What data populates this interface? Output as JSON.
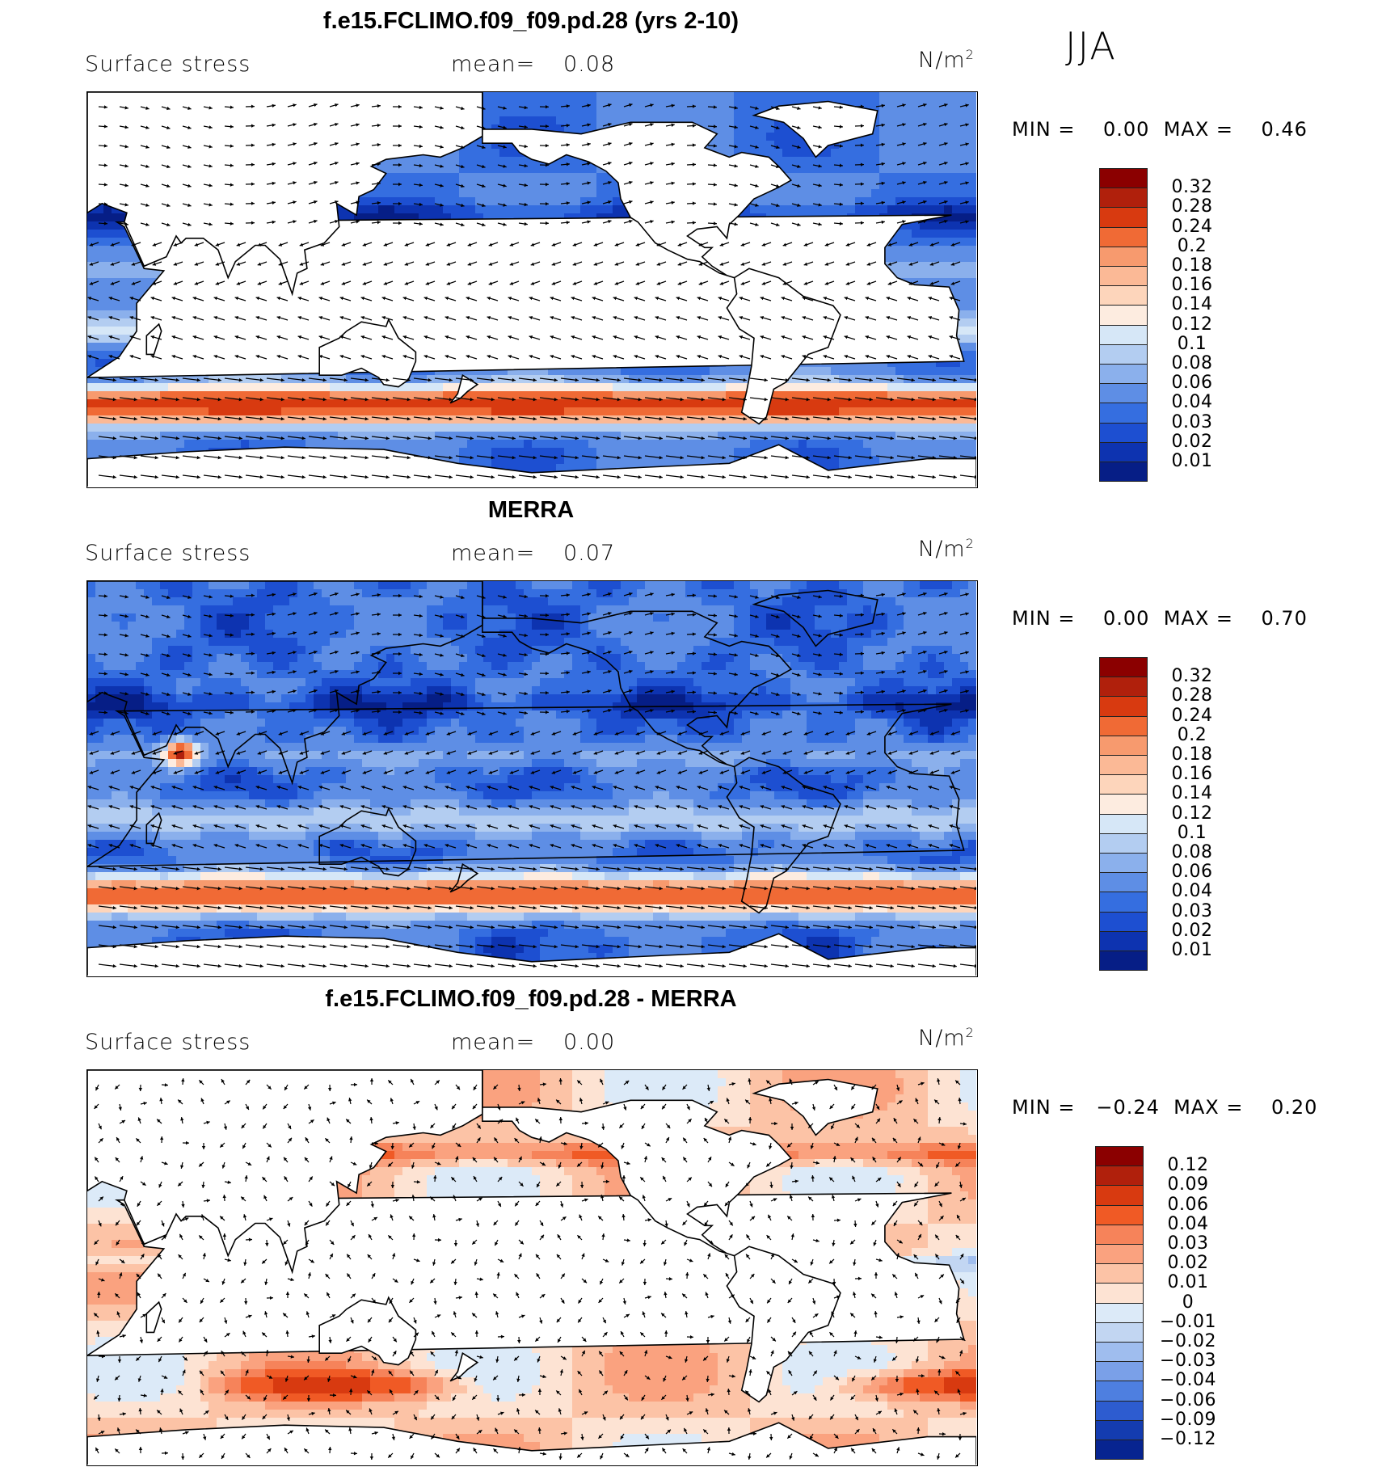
{
  "season": "JJA",
  "panels": [
    {
      "title": "f.e15.FCLIMO.f09_f09.pd.28 (yrs 2-10)",
      "field_label": "Surface stress",
      "mean_label": "mean=",
      "mean_value": "0.08",
      "units_base": "N/m",
      "units_exp": "2",
      "minmax": "MIN =    0.00  MAX =    0.46",
      "colorbar": {
        "labels": [
          "0.32",
          "0.28",
          "0.24",
          "0.2",
          "0.18",
          "0.16",
          "0.14",
          "0.12",
          "0.1",
          "0.08",
          "0.06",
          "0.04",
          "0.03",
          "0.02",
          "0.01"
        ],
        "colors": [
          "#8b0000",
          "#b0200c",
          "#d83a10",
          "#f06a35",
          "#f79a6e",
          "#fbb996",
          "#fdd5bb",
          "#fdece0",
          "#d6e7f7",
          "#b3cdf1",
          "#8bb0ec",
          "#5e8ee5",
          "#356ee0",
          "#1d4fd1",
          "#0d33b0",
          "#061e86"
        ]
      },
      "map_kind": "model"
    },
    {
      "title": "MERRA",
      "field_label": "Surface stress",
      "mean_label": "mean=",
      "mean_value": "0.07",
      "units_base": "N/m",
      "units_exp": "2",
      "minmax": "MIN =    0.00  MAX =    0.70",
      "colorbar": {
        "labels": [
          "0.32",
          "0.28",
          "0.24",
          "0.2",
          "0.18",
          "0.16",
          "0.14",
          "0.12",
          "0.1",
          "0.08",
          "0.06",
          "0.04",
          "0.03",
          "0.02",
          "0.01"
        ],
        "colors": [
          "#8b0000",
          "#b0200c",
          "#d83a10",
          "#f06a35",
          "#f79a6e",
          "#fbb996",
          "#fdd5bb",
          "#fdece0",
          "#d6e7f7",
          "#b3cdf1",
          "#8bb0ec",
          "#5e8ee5",
          "#356ee0",
          "#1d4fd1",
          "#0d33b0",
          "#061e86"
        ]
      },
      "map_kind": "obs"
    },
    {
      "title": "f.e15.FCLIMO.f09_f09.pd.28 - MERRA",
      "field_label": "Surface stress",
      "mean_label": "mean=",
      "mean_value": "0.00",
      "units_base": "N/m",
      "units_exp": "2",
      "minmax": "MIN =   −0.24  MAX =    0.20",
      "colorbar": {
        "labels": [
          "0.12",
          "0.09",
          "0.06",
          "0.04",
          "0.03",
          "0.02",
          "0.01",
          "0",
          "−0.01",
          "−0.02",
          "−0.03",
          "−0.04",
          "−0.06",
          "−0.09",
          "−0.12"
        ],
        "colors": [
          "#8b0000",
          "#b0200c",
          "#d83a10",
          "#f05a25",
          "#f6835a",
          "#faa27f",
          "#fcc3a6",
          "#fde3d3",
          "#dceaf8",
          "#c2d6f2",
          "#9fbdee",
          "#7aa0e8",
          "#4e7fe0",
          "#2d5cd0",
          "#143cb0",
          "#072490"
        ]
      },
      "map_kind": "diff"
    }
  ]
}
